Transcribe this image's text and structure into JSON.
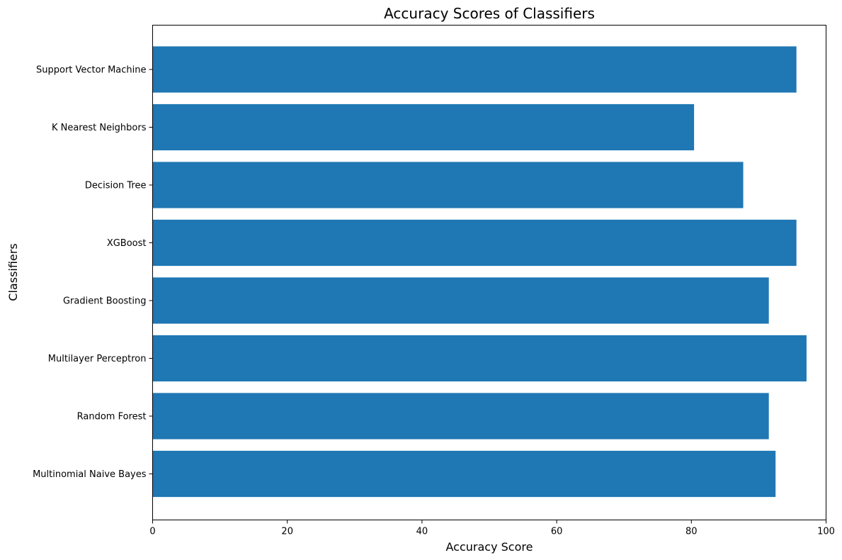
{
  "chart_data": {
    "type": "bar",
    "orientation": "horizontal",
    "title": "Accuracy Scores of Classifiers",
    "xlabel": "Accuracy Score",
    "ylabel": "Classifiers",
    "categories": [
      "Multinomial Naive Bayes",
      "Random Forest",
      "Multilayer Perceptron",
      "Gradient Boosting",
      "XGBoost",
      "Decision Tree",
      "K Nearest Neighbors",
      "Support Vector Machine"
    ],
    "values": [
      92.5,
      91.5,
      97.1,
      91.5,
      95.6,
      87.7,
      80.4,
      95.6
    ],
    "xlim": [
      0,
      100
    ],
    "xticks": [
      0,
      20,
      40,
      60,
      80,
      100
    ],
    "xtick_labels": [
      "0",
      "20",
      "40",
      "60",
      "80",
      "100"
    ],
    "bar_color": "#1f77b4",
    "grid": false,
    "legend": "none"
  }
}
